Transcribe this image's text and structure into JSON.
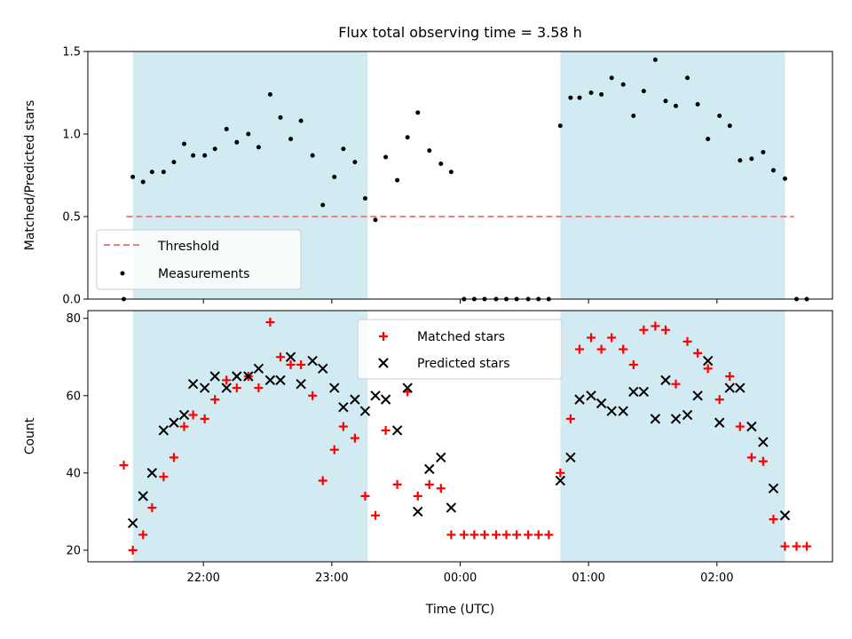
{
  "chart_data": [
    {
      "type": "scatter",
      "title": "Flux total observing time = 3.58 h",
      "xlabel": "",
      "ylabel": "Matched/Predicted stars",
      "ylim": [
        0,
        1.5
      ],
      "yticks": [
        0.0,
        0.5,
        1.0,
        1.5
      ],
      "ytick_labels": [
        "0.0",
        "0.5",
        "1.0",
        "1.5"
      ],
      "xlim": [
        -2.9,
        2.9
      ],
      "shaded_ranges": [
        [
          -2.55,
          -0.72
        ],
        [
          0.78,
          2.53
        ]
      ],
      "shade_color": "#add8e6",
      "legend_position": "lower-left",
      "series": [
        {
          "name": "Threshold",
          "kind": "dashed-line",
          "color": "#f08080",
          "x": [
            -2.6,
            2.6
          ],
          "y": [
            0.5,
            0.5
          ]
        },
        {
          "name": "Measurements",
          "kind": "points",
          "color": "#000000",
          "x": [
            -2.62,
            -2.55,
            -2.47,
            -2.4,
            -2.31,
            -2.23,
            -2.15,
            -2.08,
            -1.99,
            -1.91,
            -1.82,
            -1.74,
            -1.65,
            -1.57,
            -1.48,
            -1.4,
            -1.32,
            -1.24,
            -1.15,
            -1.07,
            -0.98,
            -0.91,
            -0.82,
            -0.74,
            -0.66,
            -0.58,
            -0.49,
            -0.41,
            -0.33,
            -0.24,
            -0.15,
            -0.07,
            0.03,
            0.11,
            0.19,
            0.28,
            0.36,
            0.44,
            0.53,
            0.61,
            0.69,
            0.78,
            0.86,
            0.93,
            1.02,
            1.1,
            1.18,
            1.27,
            1.35,
            1.43,
            1.52,
            1.6,
            1.68,
            1.77,
            1.85,
            1.93,
            2.02,
            2.1,
            2.18,
            2.27,
            2.36,
            2.44,
            2.53,
            2.62,
            2.7
          ],
          "y": [
            0.0,
            0.74,
            0.71,
            0.77,
            0.77,
            0.83,
            0.94,
            0.87,
            0.87,
            0.91,
            1.03,
            0.95,
            1.0,
            0.92,
            1.24,
            1.1,
            0.97,
            1.08,
            0.87,
            0.57,
            0.74,
            0.91,
            0.83,
            0.61,
            0.48,
            0.86,
            0.72,
            0.98,
            1.13,
            0.9,
            0.82,
            0.77,
            0.0,
            0.0,
            0.0,
            0.0,
            0.0,
            0.0,
            0.0,
            0.0,
            0.0,
            1.05,
            1.22,
            1.22,
            1.25,
            1.24,
            1.34,
            1.3,
            1.11,
            1.26,
            1.45,
            1.2,
            1.17,
            1.34,
            1.18,
            0.97,
            1.11,
            1.05,
            0.84,
            0.85,
            0.89,
            0.78,
            0.73,
            0.0,
            0.0
          ]
        }
      ]
    },
    {
      "type": "scatter",
      "title": "",
      "xlabel": "Time (UTC)",
      "ylabel": "Count",
      "ylim": [
        17,
        82
      ],
      "yticks": [
        20,
        40,
        60,
        80
      ],
      "ytick_labels": [
        "20",
        "40",
        "60",
        "80"
      ],
      "xlim": [
        -2.9,
        2.9
      ],
      "xticks": [
        -2.0,
        -1.0,
        0.0,
        1.0,
        2.0
      ],
      "xtick_labels": [
        "22:00",
        "23:00",
        "00:00",
        "01:00",
        "02:00"
      ],
      "shaded_ranges": [
        [
          -2.55,
          -0.72
        ],
        [
          0.78,
          2.53
        ]
      ],
      "shade_color": "#add8e6",
      "legend_position": "upper-center",
      "series": [
        {
          "name": "Matched stars",
          "kind": "plus",
          "color": "#ff0000",
          "x": [
            -2.62,
            -2.55,
            -2.47,
            -2.4,
            -2.31,
            -2.23,
            -2.15,
            -2.08,
            -1.99,
            -1.91,
            -1.82,
            -1.74,
            -1.65,
            -1.57,
            -1.48,
            -1.4,
            -1.32,
            -1.24,
            -1.15,
            -1.07,
            -0.98,
            -0.91,
            -0.82,
            -0.74,
            -0.66,
            -0.58,
            -0.49,
            -0.41,
            -0.33,
            -0.24,
            -0.15,
            -0.07,
            0.03,
            0.11,
            0.19,
            0.28,
            0.36,
            0.44,
            0.53,
            0.61,
            0.69,
            0.78,
            0.86,
            0.93,
            1.02,
            1.1,
            1.18,
            1.27,
            1.35,
            1.43,
            1.52,
            1.6,
            1.68,
            1.77,
            1.85,
            1.93,
            2.02,
            2.1,
            2.18,
            2.27,
            2.36,
            2.44,
            2.53,
            2.62,
            2.7
          ],
          "y": [
            42,
            20,
            24,
            31,
            39,
            44,
            52,
            55,
            54,
            59,
            64,
            62,
            65,
            62,
            79,
            70,
            68,
            68,
            60,
            38,
            46,
            52,
            49,
            34,
            29,
            51,
            37,
            61,
            34,
            37,
            36,
            24,
            24,
            24,
            24,
            24,
            24,
            24,
            24,
            24,
            24,
            40,
            54,
            72,
            75,
            72,
            75,
            72,
            68,
            77,
            78,
            77,
            63,
            74,
            71,
            67,
            59,
            65,
            52,
            44,
            43,
            28,
            21,
            21,
            21
          ]
        },
        {
          "name": "Predicted stars",
          "kind": "cross",
          "color": "#000000",
          "x": [
            -2.55,
            -2.47,
            -2.4,
            -2.31,
            -2.23,
            -2.15,
            -2.08,
            -1.99,
            -1.91,
            -1.82,
            -1.74,
            -1.65,
            -1.57,
            -1.48,
            -1.4,
            -1.32,
            -1.24,
            -1.15,
            -1.07,
            -0.98,
            -0.91,
            -0.82,
            -0.74,
            -0.66,
            -0.58,
            -0.49,
            -0.41,
            -0.33,
            -0.24,
            -0.15,
            -0.07,
            0.78,
            0.86,
            0.93,
            1.02,
            1.1,
            1.18,
            1.27,
            1.35,
            1.43,
            1.52,
            1.6,
            1.68,
            1.77,
            1.85,
            1.93,
            2.02,
            2.1,
            2.18,
            2.27,
            2.36,
            2.44,
            2.53
          ],
          "y": [
            27,
            34,
            40,
            51,
            53,
            55,
            63,
            62,
            65,
            62,
            65,
            65,
            67,
            64,
            64,
            70,
            63,
            69,
            67,
            62,
            57,
            59,
            56,
            60,
            59,
            51,
            62,
            30,
            41,
            44,
            31,
            38,
            44,
            59,
            60,
            58,
            56,
            56,
            61,
            61,
            54,
            64,
            54,
            55,
            60,
            69,
            53,
            62,
            62,
            52,
            48,
            36,
            29
          ]
        }
      ]
    }
  ]
}
